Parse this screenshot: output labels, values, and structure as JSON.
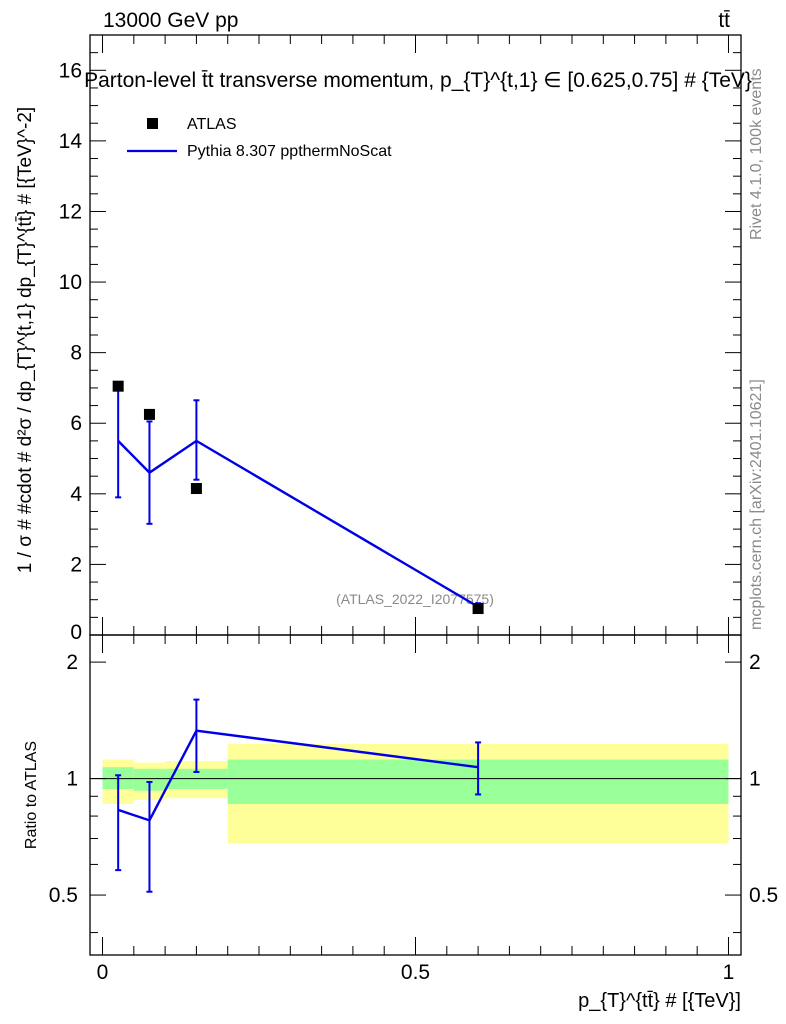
{
  "header": {
    "energy_label": "13000 GeV pp",
    "process_label": "tt̄"
  },
  "side_labels": {
    "rivet": "Rivet 4.1.0,  100k events",
    "mcplots": "mcplots.cern.ch [arXiv:2401.10621]"
  },
  "colors": {
    "mc_line": "#0000e6",
    "band_inner": "#99ff99",
    "band_outer": "#ffff99",
    "data_marker": "#000000"
  },
  "chart_data": [
    {
      "type": "scatter",
      "panel": "main",
      "title": "Parton-level t̄t transverse momentum, p_{T}^{t,1} ∈ [0.625,0.75] # {TeV}",
      "ylabel": "1 / σ # #cdot # d²σ / dp_{T}^{t,1} dp_{T}^{tt̄} # [{TeV}^-2]",
      "xlabel": "",
      "xlim": [
        -0.02,
        1.02
      ],
      "ylim": [
        0,
        17
      ],
      "yticks": [
        0,
        2,
        4,
        6,
        8,
        10,
        12,
        14,
        16
      ],
      "watermark": "(ATLAS_2022_I2077575)",
      "legend_position": "top-left",
      "series": [
        {
          "name": "ATLAS",
          "kind": "markers",
          "x": [
            0.025,
            0.075,
            0.15,
            0.6
          ],
          "y": [
            7.05,
            6.25,
            4.15,
            0.75
          ]
        },
        {
          "name": "Pythia 8.307 ppthermNoScat",
          "kind": "line",
          "x": [
            0.025,
            0.075,
            0.15,
            0.6
          ],
          "y": [
            5.5,
            4.6,
            5.5,
            0.8
          ],
          "yerr_low": [
            3.9,
            3.15,
            4.4,
            0.7
          ],
          "yerr_high": [
            7.0,
            6.05,
            6.65,
            0.9
          ]
        }
      ]
    },
    {
      "type": "line",
      "panel": "ratio",
      "ylabel": "Ratio to ATLAS",
      "xlabel": "p_{T}^{tt̄} # [{TeV}]",
      "xlim": [
        -0.02,
        1.02
      ],
      "ylim": [
        0.35,
        2.35
      ],
      "yticks": [
        0.5,
        1,
        2
      ],
      "xticks": [
        0,
        0.5,
        1
      ],
      "reference": 1,
      "bands": [
        {
          "x_low": 0.0,
          "x_high": 0.05,
          "inner": [
            0.94,
            1.07
          ],
          "outer": [
            0.86,
            1.12
          ]
        },
        {
          "x_low": 0.05,
          "x_high": 0.1,
          "inner": [
            0.93,
            1.06
          ],
          "outer": [
            0.88,
            1.1
          ]
        },
        {
          "x_low": 0.1,
          "x_high": 0.2,
          "inner": [
            0.94,
            1.06
          ],
          "outer": [
            0.89,
            1.11
          ]
        },
        {
          "x_low": 0.2,
          "x_high": 1.0,
          "inner": [
            0.86,
            1.12
          ],
          "outer": [
            0.68,
            1.23
          ]
        }
      ],
      "series": [
        {
          "name": "Pythia 8.307 ppthermNoScat",
          "x": [
            0.025,
            0.075,
            0.15,
            0.6
          ],
          "y": [
            0.83,
            0.78,
            1.33,
            1.07
          ],
          "yerr_low": [
            0.58,
            0.51,
            1.04,
            0.91
          ],
          "yerr_high": [
            1.02,
            0.98,
            1.6,
            1.24
          ]
        }
      ]
    }
  ]
}
